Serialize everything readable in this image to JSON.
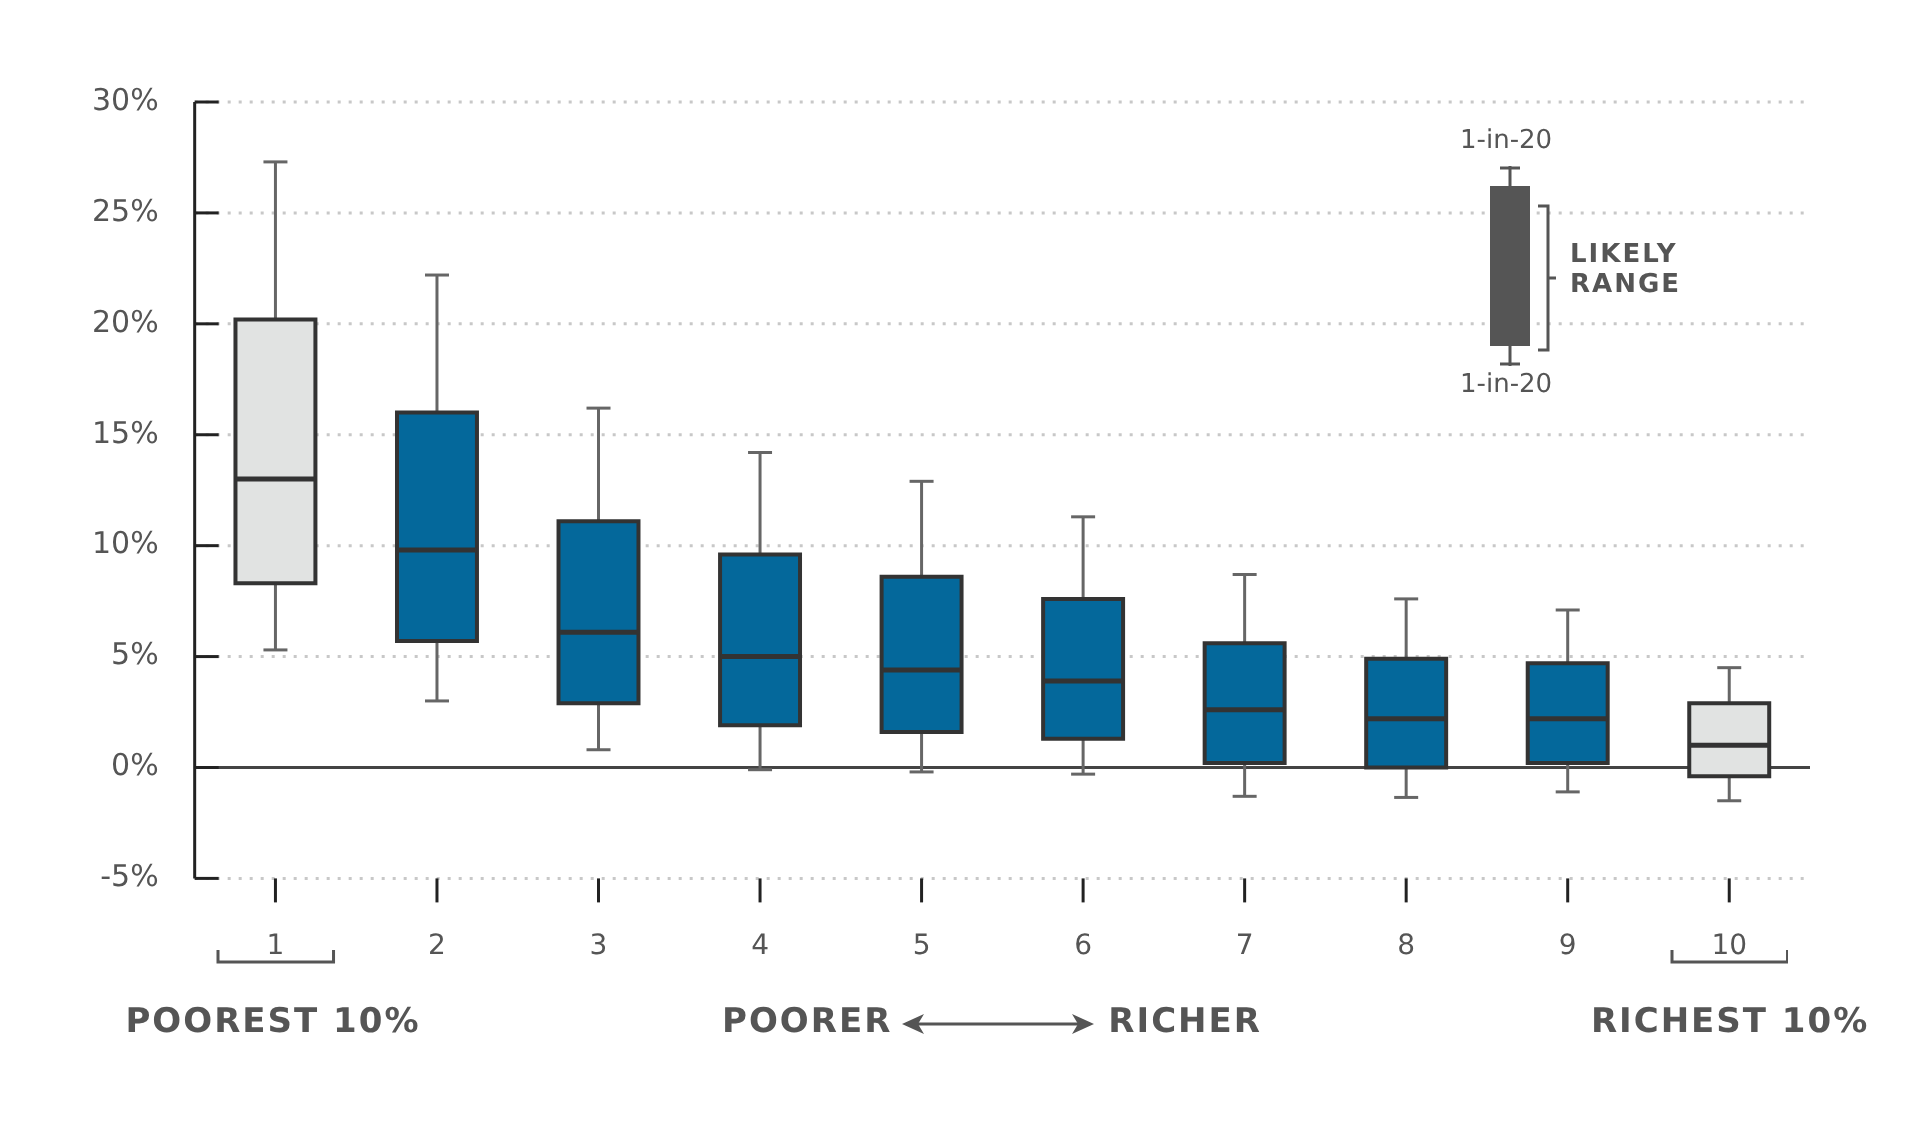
{
  "chart_data": {
    "type": "box",
    "categories": [
      "1",
      "2",
      "3",
      "4",
      "5",
      "6",
      "7",
      "8",
      "9",
      "10"
    ],
    "boxes": [
      {
        "low": 5.3,
        "q1": 8.3,
        "median": 13.0,
        "q3": 20.2,
        "high": 27.3
      },
      {
        "low": 3.0,
        "q1": 5.7,
        "median": 9.8,
        "q3": 16.0,
        "high": 22.2
      },
      {
        "low": 0.8,
        "q1": 2.9,
        "median": 6.1,
        "q3": 11.1,
        "high": 16.2
      },
      {
        "low": -0.1,
        "q1": 1.9,
        "median": 5.0,
        "q3": 9.6,
        "high": 14.2
      },
      {
        "low": -0.2,
        "q1": 1.6,
        "median": 4.4,
        "q3": 8.6,
        "high": 12.9
      },
      {
        "low": -0.3,
        "q1": 1.3,
        "median": 3.9,
        "q3": 7.6,
        "high": 11.3
      },
      {
        "low": -1.3,
        "q1": 0.2,
        "median": 2.6,
        "q3": 5.6,
        "high": 8.7
      },
      {
        "low": -1.35,
        "q1": 0.0,
        "median": 2.2,
        "q3": 4.9,
        "high": 7.6
      },
      {
        "low": -1.1,
        "q1": 0.2,
        "median": 2.2,
        "q3": 4.7,
        "high": 7.1
      },
      {
        "low": -1.5,
        "q1": -0.4,
        "median": 1.0,
        "q3": 2.9,
        "high": 4.5
      }
    ],
    "colors": [
      "#e1e3e2",
      "#04689b",
      "#04689b",
      "#04689b",
      "#04689b",
      "#04689b",
      "#04689b",
      "#04689b",
      "#04689b",
      "#e1e3e2"
    ],
    "ylim": [
      -5,
      30
    ],
    "yticks": [
      {
        "value": -5,
        "label": "-5%"
      },
      {
        "value": 0,
        "label": "0%"
      },
      {
        "value": 5,
        "label": "5%"
      },
      {
        "value": 10,
        "label": "10%"
      },
      {
        "value": 15,
        "label": "15%"
      },
      {
        "value": 20,
        "label": "20%"
      },
      {
        "value": 25,
        "label": "25%"
      },
      {
        "value": 30,
        "label": "30%"
      }
    ],
    "grid": "y",
    "ref_lines": [
      {
        "axis": "y",
        "value": 0,
        "color": "#444444",
        "line_style": "solid"
      }
    ],
    "annotations": [
      "1-in-20",
      "1-in-20",
      "LIKELY RANGE",
      "POOREST 10%",
      "POORER",
      "RICHER",
      "RICHEST 10%"
    ]
  }
}
